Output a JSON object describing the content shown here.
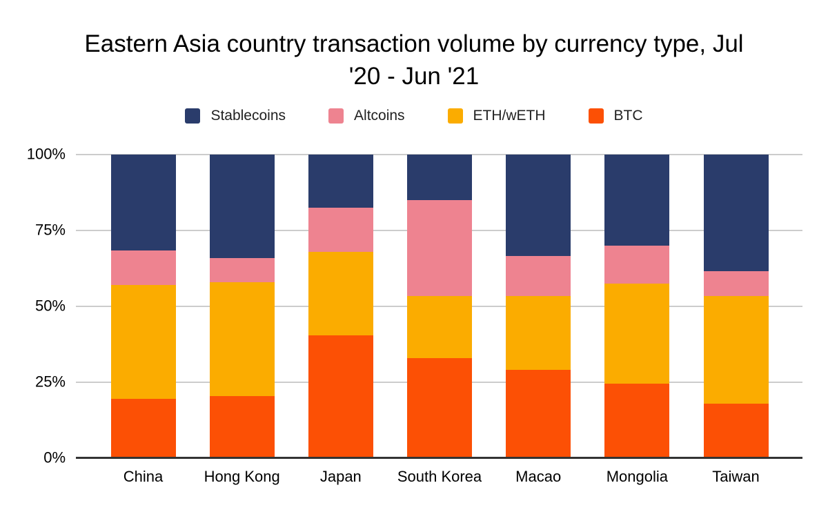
{
  "title": "Eastern Asia country transaction volume by currency type, Jul\n'20 - Jun '21",
  "colors": {
    "background": "#FFFFFF",
    "grid": "#CCCCCC",
    "axis": "#333333",
    "text": "#000000",
    "stablecoins": "#2A3C6B",
    "altcoins": "#EE8390",
    "eth_weth": "#FBAC00",
    "btc": "#FC5005"
  },
  "legend": [
    {
      "label": "Stablecoins",
      "color": "#2A3C6B"
    },
    {
      "label": "Altcoins",
      "color": "#EE8390"
    },
    {
      "label": "ETH/wETH",
      "color": "#FBAC00"
    },
    {
      "label": "BTC",
      "color": "#FC5005"
    }
  ],
  "chart_data": {
    "type": "bar",
    "stacked": true,
    "unit": "percent of transaction volume",
    "title": "Eastern Asia country transaction volume by currency type, Jul '20 - Jun '21",
    "xlabel": "",
    "ylabel": "",
    "ylim": [
      0,
      100
    ],
    "grid": true,
    "legend_position": "top",
    "categories": [
      "China",
      "Hong Kong",
      "Japan",
      "South Korea",
      "Macao",
      "Mongolia",
      "Taiwan"
    ],
    "series": [
      {
        "name": "BTC",
        "color": "#FC5005",
        "values": [
          19.5,
          20.5,
          40.5,
          33.0,
          29.0,
          24.5,
          18.0
        ]
      },
      {
        "name": "ETH/wETH",
        "color": "#FBAC00",
        "values": [
          37.5,
          37.5,
          27.5,
          20.5,
          24.5,
          33.0,
          35.5
        ]
      },
      {
        "name": "Altcoins",
        "color": "#EE8390",
        "values": [
          11.5,
          8.0,
          14.5,
          31.5,
          13.0,
          12.5,
          8.0
        ]
      },
      {
        "name": "Stablecoins",
        "color": "#2A3C6B",
        "values": [
          31.5,
          34.0,
          17.5,
          15.0,
          33.5,
          30.0,
          38.5
        ]
      }
    ],
    "y_ticks": [
      {
        "value": 100,
        "label": "100%"
      },
      {
        "value": 75,
        "label": "75%"
      },
      {
        "value": 50,
        "label": "50%"
      },
      {
        "value": 25,
        "label": "25%"
      },
      {
        "value": 0,
        "label": "0%"
      }
    ]
  }
}
